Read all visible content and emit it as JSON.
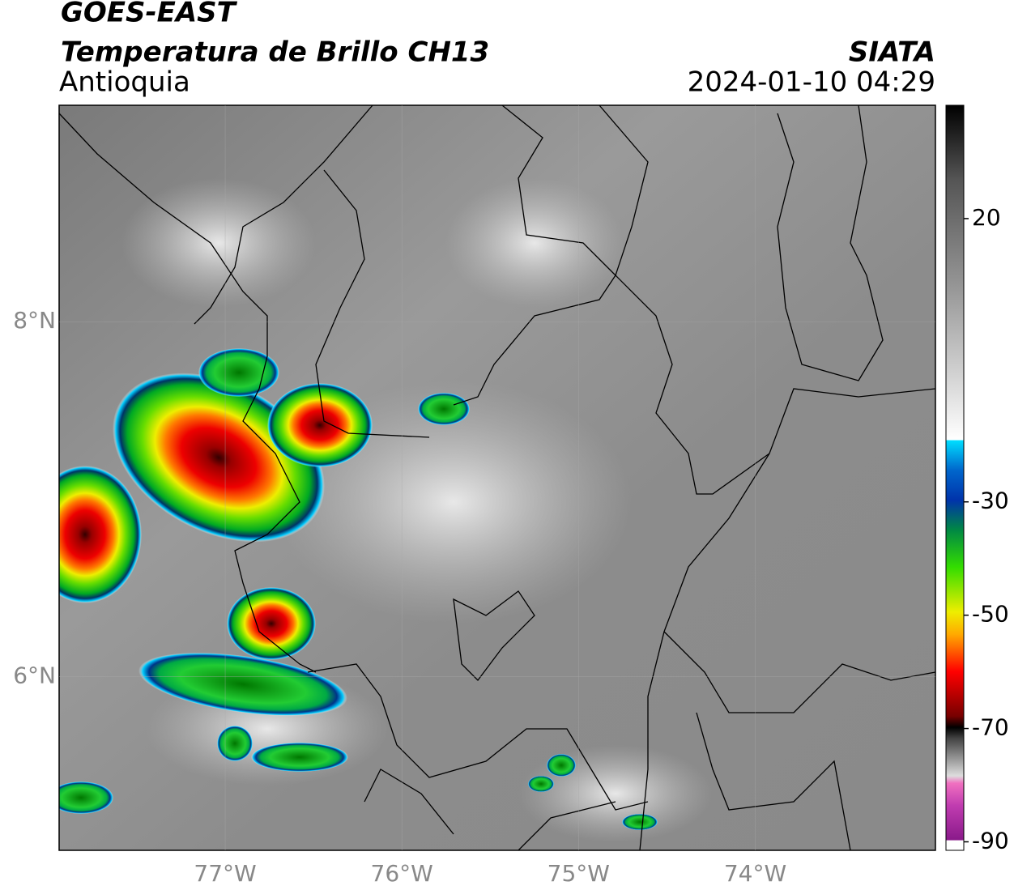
{
  "header": {
    "title": "GOES-EAST",
    "subtitle": "Temperatura de Brillo CH13",
    "region": "Antioquia",
    "source": "SIATA",
    "timestamp": "2024-01-10 04:29"
  },
  "map": {
    "xlim": [
      -77.94,
      -72.98
    ],
    "ylim": [
      5.02,
      9.22
    ],
    "xticks": [
      {
        "value": -77,
        "label": "77°W"
      },
      {
        "value": -76,
        "label": "76°W"
      },
      {
        "value": -75,
        "label": "75°W"
      },
      {
        "value": -74,
        "label": "74°W"
      }
    ],
    "yticks": [
      {
        "value": 8,
        "label": "8°N"
      },
      {
        "value": 6,
        "label": "6°N"
      }
    ]
  },
  "colorbar": {
    "range": [
      -91.5,
      40
    ],
    "ticks": [
      20,
      -30,
      -50,
      -70,
      -90
    ]
  }
}
